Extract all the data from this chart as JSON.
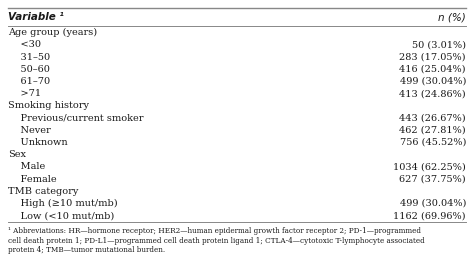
{
  "header_col1": "Variable ¹",
  "header_col2": "n (%)",
  "rows": [
    {
      "label": "Age group (years)",
      "value": "",
      "indent": 0,
      "category": true
    },
    {
      "label": "    <30",
      "value": "50 (3.01%)",
      "indent": 0,
      "category": false
    },
    {
      "label": "    31–50",
      "value": "283 (17.05%)",
      "indent": 0,
      "category": false
    },
    {
      "label": "    50–60",
      "value": "416 (25.04%)",
      "indent": 0,
      "category": false
    },
    {
      "label": "    61–70",
      "value": "499 (30.04%)",
      "indent": 0,
      "category": false
    },
    {
      "label": "    >71",
      "value": "413 (24.86%)",
      "indent": 0,
      "category": false
    },
    {
      "label": "Smoking history",
      "value": "",
      "indent": 0,
      "category": true
    },
    {
      "label": "    Previous/current smoker",
      "value": "443 (26.67%)",
      "indent": 0,
      "category": false
    },
    {
      "label": "    Never",
      "value": "462 (27.81%)",
      "indent": 0,
      "category": false
    },
    {
      "label": "    Unknown",
      "value": "756 (45.52%)",
      "indent": 0,
      "category": false
    },
    {
      "label": "Sex",
      "value": "",
      "indent": 0,
      "category": true
    },
    {
      "label": "    Male",
      "value": "1034 (62.25%)",
      "indent": 0,
      "category": false
    },
    {
      "label": "    Female",
      "value": "627 (37.75%)",
      "indent": 0,
      "category": false
    },
    {
      "label": "TMB category",
      "value": "",
      "indent": 0,
      "category": true
    },
    {
      "label": "    High (≥10 mut/mb)",
      "value": "499 (30.04%)",
      "indent": 0,
      "category": false
    },
    {
      "label": "    Low (<10 mut/mb)",
      "value": "1162 (69.96%)",
      "indent": 0,
      "category": false
    }
  ],
  "footnote_lines": [
    "¹ Abbreviations: HR—hormone receptor; HER2—human epidermal growth factor receptor 2; PD-1—programmed",
    "cell death protein 1; PD-L1—programmed cell death protein ligand 1; CTLA-4—cytotoxic T-lymphocyte associated",
    "protein 4; TMB—tumor mutational burden."
  ],
  "bg_color": "#ffffff",
  "line_color": "#888888",
  "text_color": "#1a1a1a",
  "font_size_header": 7.5,
  "font_size_data": 7.0,
  "font_size_footnote": 5.2
}
